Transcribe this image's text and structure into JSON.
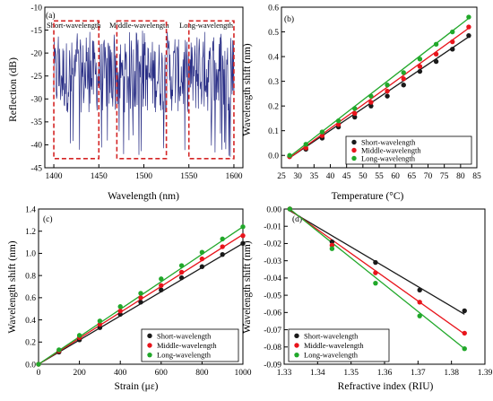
{
  "colors": {
    "short": "#1a1a1a",
    "middle": "#e8141b",
    "long": "#21a82a",
    "spectrum": "#2a2f86",
    "highlight_box": "#d42525"
  },
  "chart_data": [
    {
      "panel_tag": "(a)",
      "type": "line",
      "title": "",
      "xlabel": "Wavelength (nm)",
      "ylabel": "Reflection (dB)",
      "xlim": [
        1390,
        1610
      ],
      "ylim": [
        -45,
        -10
      ],
      "xticks": [
        1400,
        1450,
        1500,
        1550,
        1600
      ],
      "xtick_labels": [
        "1400",
        "1450",
        "1500",
        "1550",
        "1600"
      ],
      "yticks": [
        -45,
        -40,
        -35,
        -30,
        -25,
        -20,
        -15,
        -10
      ],
      "ytick_labels": [
        "-45",
        "-40",
        "-35",
        "-30",
        "-25",
        "-20",
        "-15",
        "-10"
      ],
      "spectrum": {
        "x_start": 1400,
        "x_end": 1600,
        "step": 0.5,
        "baseline_min": -43,
        "typical_range": [
          -33,
          -17
        ]
      },
      "regions": [
        {
          "label": "Short-wavelength",
          "x_range": [
            1400,
            1450
          ],
          "y_range": [
            -43,
            -13
          ]
        },
        {
          "label": "Middle-wavelength",
          "x_range": [
            1470,
            1525
          ],
          "y_range": [
            -43,
            -13
          ]
        },
        {
          "label": "Long-wavelength",
          "x_range": [
            1550,
            1600
          ],
          "y_range": [
            -43,
            -13
          ]
        }
      ]
    },
    {
      "panel_tag": "(b)",
      "type": "scatter",
      "title": "",
      "xlabel": "Temperature (°C)",
      "ylabel": "Wavelength shift (nm)",
      "xlim": [
        25,
        85
      ],
      "ylim": [
        -0.05,
        0.6
      ],
      "xticks": [
        25,
        30,
        35,
        40,
        45,
        50,
        55,
        60,
        65,
        70,
        75,
        80,
        85
      ],
      "xtick_labels": [
        "25",
        "30",
        "35",
        "40",
        "45",
        "50",
        "55",
        "60",
        "65",
        "70",
        "75",
        "80",
        "85"
      ],
      "yticks": [
        0.0,
        0.1,
        0.2,
        0.3,
        0.4,
        0.5,
        0.6
      ],
      "ytick_labels": [
        "0.0",
        "0.1",
        "0.2",
        "0.3",
        "0.4",
        "0.5",
        "0.6"
      ],
      "legend_position": "bottom-right",
      "x": [
        27.5,
        32.5,
        37.5,
        42.5,
        47.5,
        52.5,
        57.5,
        62.5,
        67.5,
        72.5,
        77.5,
        82.5
      ],
      "series": [
        {
          "name": "Short-wavelength",
          "color_key": "short",
          "values": [
            -0.005,
            0.025,
            0.07,
            0.115,
            0.155,
            0.2,
            0.24,
            0.285,
            0.34,
            0.38,
            0.43,
            0.485
          ],
          "fit": [
            [
              27.5,
              -0.01
            ],
            [
              82.5,
              0.48
            ]
          ]
        },
        {
          "name": "Middle-wavelength",
          "color_key": "middle",
          "values": [
            -0.005,
            0.03,
            0.08,
            0.125,
            0.17,
            0.215,
            0.26,
            0.31,
            0.36,
            0.41,
            0.46,
            0.52
          ],
          "fit": [
            [
              27.5,
              -0.01
            ],
            [
              82.5,
              0.515
            ]
          ]
        },
        {
          "name": "Long-wavelength",
          "color_key": "long",
          "values": [
            0.0,
            0.045,
            0.095,
            0.14,
            0.19,
            0.24,
            0.285,
            0.335,
            0.39,
            0.45,
            0.5,
            0.56
          ],
          "fit": [
            [
              27.5,
              -0.005
            ],
            [
              82.5,
              0.555
            ]
          ]
        }
      ]
    },
    {
      "panel_tag": "(c)",
      "type": "scatter",
      "title": "",
      "xlabel": "Strain (με)",
      "ylabel": "Wavelength shift (nm)",
      "xlim": [
        0,
        1000
      ],
      "ylim": [
        0,
        1.4
      ],
      "xticks": [
        0,
        200,
        400,
        600,
        800,
        1000
      ],
      "xtick_labels": [
        "0",
        "200",
        "400",
        "600",
        "800",
        "1000"
      ],
      "yticks": [
        0.0,
        0.2,
        0.4,
        0.6,
        0.8,
        1.0,
        1.2,
        1.4
      ],
      "ytick_labels": [
        "0.0",
        "0.2",
        "0.4",
        "0.6",
        "0.8",
        "1.0",
        "1.2",
        "1.4"
      ],
      "legend_position": "bottom-right",
      "x": [
        0,
        100,
        200,
        300,
        400,
        500,
        600,
        700,
        800,
        900,
        1000
      ],
      "series": [
        {
          "name": "Short-wavelength",
          "color_key": "short",
          "values": [
            0.0,
            0.11,
            0.22,
            0.33,
            0.45,
            0.56,
            0.67,
            0.78,
            0.88,
            0.99,
            1.09
          ],
          "fit": [
            [
              0,
              0.0
            ],
            [
              1000,
              1.09
            ]
          ]
        },
        {
          "name": "Middle-wavelength",
          "color_key": "middle",
          "values": [
            0.0,
            0.12,
            0.24,
            0.36,
            0.48,
            0.6,
            0.71,
            0.83,
            0.95,
            1.06,
            1.16
          ],
          "fit": [
            [
              0,
              0.0
            ],
            [
              1000,
              1.17
            ]
          ]
        },
        {
          "name": "Long-wavelength",
          "color_key": "long",
          "values": [
            0.0,
            0.13,
            0.26,
            0.39,
            0.52,
            0.64,
            0.77,
            0.89,
            1.01,
            1.13,
            1.24
          ],
          "fit": [
            [
              0,
              0.0
            ],
            [
              1000,
              1.24
            ]
          ]
        }
      ]
    },
    {
      "panel_tag": "(d)",
      "type": "scatter",
      "title": "",
      "xlabel": "Refractive index (RIU)",
      "ylabel": "Wavelength shift (nm)",
      "xlim": [
        1.33,
        1.39
      ],
      "ylim": [
        -0.09,
        0.0
      ],
      "xticks": [
        1.33,
        1.34,
        1.35,
        1.36,
        1.37,
        1.38,
        1.39
      ],
      "xtick_labels": [
        "1.33",
        "1.34",
        "1.35",
        "1.36",
        "1.37",
        "1.38",
        "1.39"
      ],
      "yticks": [
        -0.09,
        -0.08,
        -0.07,
        -0.06,
        -0.05,
        -0.04,
        -0.03,
        -0.02,
        -0.01,
        0.0
      ],
      "ytick_labels": [
        "-0.09",
        "-0.08",
        "-0.07",
        "-0.06",
        "-0.05",
        "-0.04",
        "-0.03",
        "-0.02",
        "-0.01",
        "0.00"
      ],
      "legend_position": "bottom-left",
      "x": [
        1.3317,
        1.3443,
        1.3573,
        1.3705,
        1.3839
      ],
      "series": [
        {
          "name": "Short-wavelength",
          "color_key": "short",
          "values": [
            0.0,
            -0.019,
            -0.031,
            -0.047,
            -0.059
          ],
          "fit": [
            [
              1.3317,
              -0.001
            ],
            [
              1.3839,
              -0.061
            ]
          ]
        },
        {
          "name": "Middle-wavelength",
          "color_key": "middle",
          "values": [
            0.0,
            -0.021,
            -0.037,
            -0.054,
            -0.072
          ],
          "fit": [
            [
              1.3317,
              -0.0005
            ],
            [
              1.3839,
              -0.0725
            ]
          ]
        },
        {
          "name": "Long-wavelength",
          "color_key": "long",
          "values": [
            0.0,
            -0.023,
            -0.043,
            -0.062,
            -0.081
          ],
          "fit": [
            [
              1.3317,
              0.0
            ],
            [
              1.3839,
              -0.081
            ]
          ]
        }
      ]
    }
  ]
}
